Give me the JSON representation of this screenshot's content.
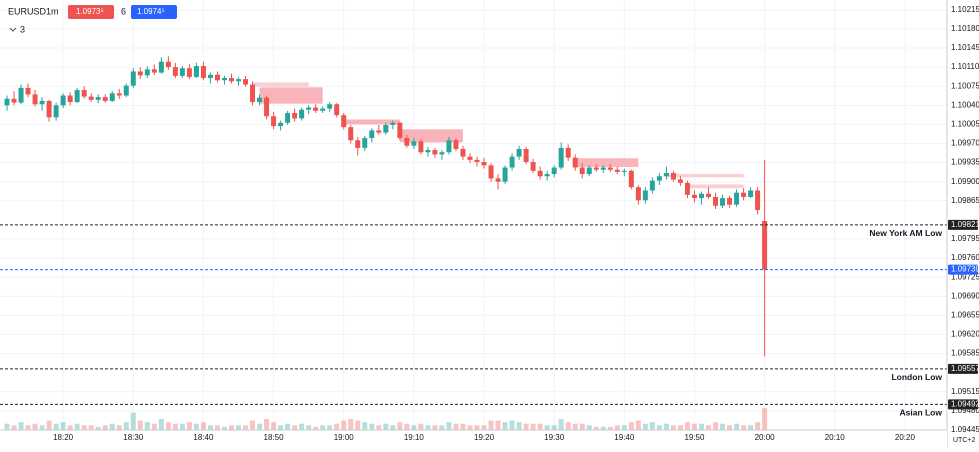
{
  "header": {
    "symbol": "EURUSD",
    "interval": "1m",
    "sell": "1.0973⁵",
    "spread": "6",
    "buy": "1.0974⁵",
    "indicators": "3"
  },
  "chart_data": {
    "type": "candlestick",
    "up_color": "#26a69a",
    "down_color": "#ef5350",
    "grid": true,
    "timezone": "UTC+2",
    "xlim": [
      "18:11",
      "20:26"
    ],
    "xticks": [
      "18:20",
      "18:30",
      "18:40",
      "18:50",
      "19:00",
      "19:10",
      "19:20",
      "19:30",
      "19:40",
      "19:50",
      "20:00",
      "20:10",
      "20:20"
    ],
    "ylim": [
      1.09445,
      1.10233
    ],
    "yticks": [
      1.10215,
      {
        "value": 1.1018,
        "label": "1.10180"
      },
      1.10145,
      {
        "value": 1.1011,
        "label": "1.10110"
      },
      1.10075,
      {
        "value": 1.1004,
        "label": "1.10040"
      },
      1.10005,
      {
        "value": 1.0997,
        "label": "1.09970"
      },
      1.09935,
      {
        "value": 1.099,
        "label": "1.09900"
      },
      1.09865,
      1.09795,
      {
        "value": 1.0976,
        "label": "1.09760"
      },
      1.09725,
      {
        "value": 1.0969,
        "label": "1.09690"
      },
      1.09655,
      {
        "value": 1.0962,
        "label": "1.09620"
      },
      1.09585,
      1.09515,
      {
        "value": 1.0948,
        "label": "1.09480"
      },
      1.09445
    ],
    "x": [
      "18:12",
      "18:13",
      "18:14",
      "18:15",
      "18:16",
      "18:17",
      "18:18",
      "18:19",
      "18:20",
      "18:21",
      "18:22",
      "18:23",
      "18:24",
      "18:25",
      "18:26",
      "18:27",
      "18:28",
      "18:29",
      "18:30",
      "18:31",
      "18:32",
      "18:33",
      "18:34",
      "18:35",
      "18:36",
      "18:37",
      "18:38",
      "18:39",
      "18:40",
      "18:41",
      "18:42",
      "18:43",
      "18:44",
      "18:45",
      "18:46",
      "18:47",
      "18:48",
      "18:49",
      "18:50",
      "18:51",
      "18:52",
      "18:53",
      "18:54",
      "18:55",
      "18:56",
      "18:57",
      "18:58",
      "18:59",
      "19:00",
      "19:01",
      "19:02",
      "19:03",
      "19:04",
      "19:05",
      "19:06",
      "19:07",
      "19:08",
      "19:09",
      "19:10",
      "19:11",
      "19:12",
      "19:13",
      "19:14",
      "19:15",
      "19:16",
      "19:17",
      "19:18",
      "19:19",
      "19:20",
      "19:21",
      "19:22",
      "19:23",
      "19:24",
      "19:25",
      "19:26",
      "19:27",
      "19:28",
      "19:29",
      "19:30",
      "19:31",
      "19:32",
      "19:33",
      "19:34",
      "19:35",
      "19:36",
      "19:37",
      "19:38",
      "19:39",
      "19:40",
      "19:41",
      "19:42",
      "19:43",
      "19:44",
      "19:45",
      "19:46",
      "19:47",
      "19:48",
      "19:49",
      "19:50",
      "19:51",
      "19:52",
      "19:53",
      "19:54",
      "19:55",
      "19:56",
      "19:57",
      "19:58",
      "19:59",
      "20:00"
    ],
    "ohlc": [
      [
        1.1004,
        1.10058,
        1.1003,
        1.10052
      ],
      [
        1.10052,
        1.10066,
        1.1004,
        1.10045
      ],
      [
        1.10045,
        1.10078,
        1.10042,
        1.10072
      ],
      [
        1.10072,
        1.1008,
        1.10055,
        1.1006
      ],
      [
        1.1006,
        1.10068,
        1.10038,
        1.10042
      ],
      [
        1.10042,
        1.10055,
        1.1003,
        1.10048
      ],
      [
        1.10048,
        1.1005,
        1.1001,
        1.10018
      ],
      [
        1.10018,
        1.10045,
        1.10012,
        1.1004
      ],
      [
        1.1004,
        1.10062,
        1.10035,
        1.10058
      ],
      [
        1.10058,
        1.10064,
        1.1004,
        1.10046
      ],
      [
        1.10046,
        1.10072,
        1.10044,
        1.10068
      ],
      [
        1.10068,
        1.10075,
        1.10052,
        1.10056
      ],
      [
        1.10056,
        1.10062,
        1.10046,
        1.1005
      ],
      [
        1.1005,
        1.1006,
        1.10044,
        1.10055
      ],
      [
        1.10055,
        1.1006,
        1.10045,
        1.10048
      ],
      [
        1.10048,
        1.10066,
        1.10046,
        1.10062
      ],
      [
        1.10062,
        1.1007,
        1.10052,
        1.10058
      ],
      [
        1.10058,
        1.1008,
        1.10055,
        1.10076
      ],
      [
        1.10076,
        1.10108,
        1.10072,
        1.10102
      ],
      [
        1.10102,
        1.1011,
        1.10088,
        1.10095
      ],
      [
        1.10095,
        1.10112,
        1.1009,
        1.10106
      ],
      [
        1.10106,
        1.10115,
        1.10096,
        1.101
      ],
      [
        1.101,
        1.10128,
        1.10098,
        1.1012
      ],
      [
        1.1012,
        1.1013,
        1.10105,
        1.1011
      ],
      [
        1.1011,
        1.10118,
        1.1009,
        1.10094
      ],
      [
        1.10094,
        1.10112,
        1.1009,
        1.10108
      ],
      [
        1.10108,
        1.10116,
        1.10088,
        1.10092
      ],
      [
        1.10092,
        1.10118,
        1.1009,
        1.10112
      ],
      [
        1.10112,
        1.1012,
        1.10086,
        1.1009
      ],
      [
        1.1009,
        1.101,
        1.1008,
        1.10096
      ],
      [
        1.10096,
        1.10102,
        1.10082,
        1.10086
      ],
      [
        1.10086,
        1.10094,
        1.10078,
        1.1009
      ],
      [
        1.1009,
        1.10098,
        1.1008,
        1.10084
      ],
      [
        1.10084,
        1.10092,
        1.10076,
        1.10088
      ],
      [
        1.10088,
        1.10094,
        1.10074,
        1.10078
      ],
      [
        1.10078,
        1.10084,
        1.1004,
        1.10046
      ],
      [
        1.10046,
        1.1006,
        1.1004,
        1.10054
      ],
      [
        1.10054,
        1.10058,
        1.10014,
        1.1002
      ],
      [
        1.1002,
        1.10028,
        1.09996,
        1.10002
      ],
      [
        1.10002,
        1.10012,
        1.09994,
        1.10008
      ],
      [
        1.10008,
        1.1003,
        1.10004,
        1.10026
      ],
      [
        1.10026,
        1.10034,
        1.1001,
        1.10016
      ],
      [
        1.10016,
        1.10036,
        1.10012,
        1.10032
      ],
      [
        1.10032,
        1.1004,
        1.10024,
        1.10036
      ],
      [
        1.10036,
        1.10042,
        1.10026,
        1.1003
      ],
      [
        1.1003,
        1.10038,
        1.10026,
        1.10034
      ],
      [
        1.10034,
        1.10046,
        1.10028,
        1.10042
      ],
      [
        1.10042,
        1.10044,
        1.10018,
        1.10022
      ],
      [
        1.10022,
        1.10026,
        1.09996,
        1.1
      ],
      [
        1.1,
        1.10004,
        1.0997,
        1.09976
      ],
      [
        1.09976,
        1.09982,
        1.09948,
        1.09962
      ],
      [
        1.09962,
        1.09984,
        1.09956,
        1.0998
      ],
      [
        1.0998,
        1.09998,
        1.09972,
        1.09994
      ],
      [
        1.09994,
        1.10004,
        1.09986,
        1.0999
      ],
      [
        1.0999,
        1.10008,
        1.09986,
        1.10004
      ],
      [
        1.10004,
        1.10012,
        1.09996,
        1.10008
      ],
      [
        1.10008,
        1.1001,
        1.09976,
        1.0998
      ],
      [
        1.0998,
        1.09986,
        1.09962,
        1.09966
      ],
      [
        1.09966,
        1.0998,
        1.0996,
        1.09974
      ],
      [
        1.09974,
        1.09978,
        1.0995,
        1.09954
      ],
      [
        1.09954,
        1.09964,
        1.09946,
        1.09958
      ],
      [
        1.09958,
        1.09962,
        1.09944,
        1.0995
      ],
      [
        1.0995,
        1.09958,
        1.0994,
        1.09954
      ],
      [
        1.09954,
        1.09982,
        1.0995,
        1.09976
      ],
      [
        1.09976,
        1.0998,
        1.09956,
        1.0996
      ],
      [
        1.0996,
        1.09966,
        1.0994,
        1.09946
      ],
      [
        1.09946,
        1.09952,
        1.09934,
        1.0994
      ],
      [
        1.0994,
        1.09946,
        1.09928,
        1.09936
      ],
      [
        1.09936,
        1.09944,
        1.09924,
        1.0993
      ],
      [
        1.0993,
        1.09934,
        1.099,
        1.09906
      ],
      [
        1.09906,
        1.09914,
        1.09886,
        1.099
      ],
      [
        1.099,
        1.0993,
        1.09896,
        1.09926
      ],
      [
        1.09926,
        1.09952,
        1.0992,
        1.09946
      ],
      [
        1.09946,
        1.09966,
        1.0994,
        1.0996
      ],
      [
        1.0996,
        1.09964,
        1.09932,
        1.09936
      ],
      [
        1.09936,
        1.09942,
        1.09916,
        1.0992
      ],
      [
        1.0992,
        1.09928,
        1.09904,
        1.0991
      ],
      [
        1.0991,
        1.0992,
        1.09902,
        1.09914
      ],
      [
        1.09914,
        1.0993,
        1.09908,
        1.09926
      ],
      [
        1.09926,
        1.09972,
        1.09922,
        1.09962
      ],
      [
        1.09962,
        1.09968,
        1.09938,
        1.09944
      ],
      [
        1.09944,
        1.0995,
        1.0992,
        1.09926
      ],
      [
        1.09926,
        1.09934,
        1.09906,
        1.09914
      ],
      [
        1.09914,
        1.0993,
        1.0991,
        1.09926
      ],
      [
        1.09926,
        1.09932,
        1.09918,
        1.09922
      ],
      [
        1.09922,
        1.0993,
        1.09916,
        1.09926
      ],
      [
        1.09926,
        1.09932,
        1.09918,
        1.09922
      ],
      [
        1.09922,
        1.09928,
        1.09914,
        1.09918
      ],
      [
        1.09918,
        1.09924,
        1.0991,
        1.0992
      ],
      [
        1.0992,
        1.09922,
        1.09886,
        1.0989
      ],
      [
        1.0989,
        1.09894,
        1.09858,
        1.09866
      ],
      [
        1.09866,
        1.0989,
        1.0986,
        1.09884
      ],
      [
        1.09884,
        1.09908,
        1.09878,
        1.09902
      ],
      [
        1.09902,
        1.09916,
        1.09894,
        1.0991
      ],
      [
        1.0991,
        1.09928,
        1.09904,
        1.09916
      ],
      [
        1.09916,
        1.0992,
        1.099,
        1.09904
      ],
      [
        1.09904,
        1.0991,
        1.09892,
        1.09898
      ],
      [
        1.09898,
        1.09902,
        1.0987,
        1.09876
      ],
      [
        1.09876,
        1.09884,
        1.09862,
        1.0987
      ],
      [
        1.0987,
        1.09882,
        1.09858,
        1.09878
      ],
      [
        1.09878,
        1.0989,
        1.09868,
        1.09872
      ],
      [
        1.09872,
        1.0988,
        1.0985,
        1.09856
      ],
      [
        1.09856,
        1.09876,
        1.09852,
        1.0987
      ],
      [
        1.0987,
        1.09874,
        1.09852,
        1.09858
      ],
      [
        1.09858,
        1.09886,
        1.09854,
        1.0988
      ],
      [
        1.0988,
        1.09888,
        1.09866,
        1.09872
      ],
      [
        1.09872,
        1.0989,
        1.0987,
        1.09884
      ],
      [
        1.09884,
        1.0989,
        1.0984,
        1.09848
      ],
      [
        1.09828,
        1.0994,
        1.0958,
        1.09739
      ]
    ],
    "volume": [
      4,
      3,
      5,
      3,
      4,
      3,
      6,
      4,
      5,
      3,
      4,
      3,
      3,
      2,
      3,
      4,
      3,
      5,
      11,
      6,
      5,
      4,
      7,
      5,
      4,
      4,
      5,
      4,
      5,
      3,
      3,
      2,
      3,
      3,
      3,
      6,
      4,
      7,
      5,
      3,
      4,
      3,
      4,
      3,
      2,
      3,
      3,
      4,
      6,
      7,
      6,
      5,
      4,
      3,
      4,
      3,
      5,
      4,
      3,
      4,
      3,
      3,
      3,
      5,
      4,
      4,
      3,
      3,
      3,
      6,
      6,
      5,
      6,
      5,
      4,
      4,
      4,
      3,
      3,
      7,
      5,
      4,
      4,
      3,
      2,
      2,
      2,
      3,
      3,
      5,
      6,
      4,
      5,
      3,
      4,
      3,
      3,
      5,
      4,
      4,
      3,
      5,
      4,
      3,
      4,
      3,
      3,
      5,
      14
    ],
    "zones": [
      {
        "x": [
          "18:47",
          "18:55"
        ],
        "y": [
          1.10074,
          1.10082
        ],
        "color": "#f9cfd2"
      },
      {
        "x": [
          "18:48",
          "18:57"
        ],
        "y": [
          1.10043,
          1.10073
        ],
        "color": "#f8b4ba"
      },
      {
        "x": [
          "19:00",
          "19:08"
        ],
        "y": [
          1.10005,
          1.10014
        ],
        "color": "#f8b4ba"
      },
      {
        "x": [
          "19:08",
          "19:17"
        ],
        "y": [
          1.09972,
          1.09996
        ],
        "color": "#f8b4ba"
      },
      {
        "x": [
          "19:33",
          "19:42"
        ],
        "y": [
          1.09927,
          1.09943
        ],
        "color": "#f8b4ba"
      },
      {
        "x": [
          "19:46",
          "19:57"
        ],
        "y": [
          1.09908,
          1.09914
        ],
        "color": "#f9cfd2"
      },
      {
        "x": [
          "19:49",
          "19:57"
        ],
        "y": [
          1.09888,
          1.09895
        ],
        "color": "#f9cfd2"
      }
    ],
    "levels": [
      {
        "value": 1.09821,
        "name": "New York AM Low",
        "color": "#222222"
      },
      {
        "value": 1.09739,
        "color": "#2962ff"
      },
      {
        "value": 1.09557,
        "name": "London Low",
        "color": "#222222"
      },
      {
        "value": 1.09492,
        "name": "Asian Low",
        "color": "#222222"
      }
    ]
  }
}
